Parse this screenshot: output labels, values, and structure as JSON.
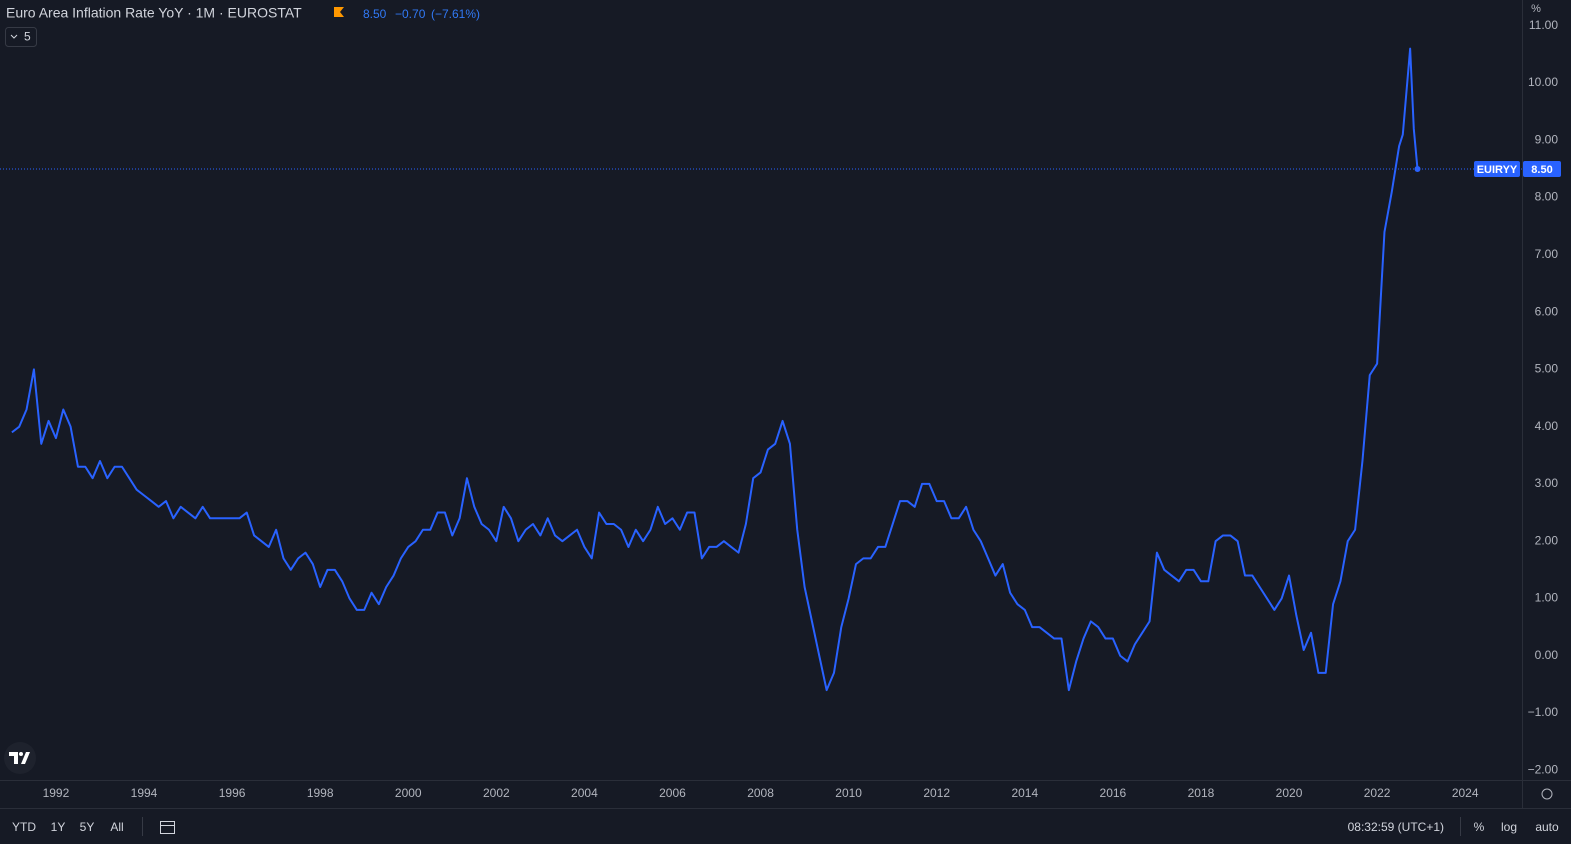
{
  "header": {
    "title": "Euro Area Inflation Rate YoY · 1M · EUROSTAT",
    "last": "8.50",
    "change": "−0.70",
    "change_pct": "(−7.61%)",
    "indicator_count": "5",
    "axis_unit": "%"
  },
  "toolbar": {
    "ranges": [
      "YTD",
      "1Y",
      "5Y",
      "All"
    ],
    "clock": "08:32:59 (UTC+1)",
    "options": [
      "%",
      "log",
      "auto"
    ]
  },
  "chart_data": {
    "type": "line",
    "x": [
      1991,
      1991.167,
      1991.333,
      1991.5,
      1991.667,
      1991.833,
      1992,
      1992.167,
      1992.333,
      1992.5,
      1992.667,
      1992.833,
      1993,
      1993.167,
      1993.333,
      1993.5,
      1993.667,
      1993.833,
      1994,
      1994.167,
      1994.333,
      1994.5,
      1994.667,
      1994.833,
      1995,
      1995.167,
      1995.333,
      1995.5,
      1995.667,
      1995.833,
      1996,
      1996.167,
      1996.333,
      1996.5,
      1996.667,
      1996.833,
      1997,
      1997.167,
      1997.333,
      1997.5,
      1997.667,
      1997.833,
      1998,
      1998.167,
      1998.333,
      1998.5,
      1998.667,
      1998.833,
      1999,
      1999.167,
      1999.333,
      1999.5,
      1999.667,
      1999.833,
      2000,
      2000.167,
      2000.333,
      2000.5,
      2000.667,
      2000.833,
      2001,
      2001.167,
      2001.333,
      2001.5,
      2001.667,
      2001.833,
      2002,
      2002.167,
      2002.333,
      2002.5,
      2002.667,
      2002.833,
      2003,
      2003.167,
      2003.333,
      2003.5,
      2003.667,
      2003.833,
      2004,
      2004.167,
      2004.333,
      2004.5,
      2004.667,
      2004.833,
      2005,
      2005.167,
      2005.333,
      2005.5,
      2005.667,
      2005.833,
      2006,
      2006.167,
      2006.333,
      2006.5,
      2006.667,
      2006.833,
      2007,
      2007.167,
      2007.333,
      2007.5,
      2007.667,
      2007.833,
      2008,
      2008.167,
      2008.333,
      2008.5,
      2008.667,
      2008.833,
      2009,
      2009.167,
      2009.333,
      2009.5,
      2009.667,
      2009.833,
      2010,
      2010.167,
      2010.333,
      2010.5,
      2010.667,
      2010.833,
      2011,
      2011.167,
      2011.333,
      2011.5,
      2011.667,
      2011.833,
      2012,
      2012.167,
      2012.333,
      2012.5,
      2012.667,
      2012.833,
      2013,
      2013.167,
      2013.333,
      2013.5,
      2013.667,
      2013.833,
      2014,
      2014.167,
      2014.333,
      2014.5,
      2014.667,
      2014.833,
      2015,
      2015.167,
      2015.333,
      2015.5,
      2015.667,
      2015.833,
      2016,
      2016.167,
      2016.333,
      2016.5,
      2016.667,
      2016.833,
      2017,
      2017.167,
      2017.333,
      2017.5,
      2017.667,
      2017.833,
      2018,
      2018.167,
      2018.333,
      2018.5,
      2018.667,
      2018.833,
      2019,
      2019.167,
      2019.333,
      2019.5,
      2019.667,
      2019.833,
      2020,
      2020.167,
      2020.333,
      2020.5,
      2020.667,
      2020.833,
      2021,
      2021.167,
      2021.333,
      2021.5,
      2021.667,
      2021.833,
      2022,
      2022.167,
      2022.333,
      2022.5,
      2022.583,
      2022.75,
      2022.833,
      2022.917
    ],
    "series": [
      {
        "name": "EUIRYY",
        "color": "#2962ff",
        "values": [
          3.9,
          4.0,
          4.3,
          5.0,
          3.7,
          4.1,
          3.8,
          4.3,
          4.0,
          3.3,
          3.3,
          3.1,
          3.4,
          3.1,
          3.3,
          3.3,
          3.1,
          2.9,
          2.8,
          2.7,
          2.6,
          2.7,
          2.4,
          2.6,
          2.5,
          2.4,
          2.6,
          2.4,
          2.4,
          2.4,
          2.4,
          2.4,
          2.5,
          2.1,
          2.0,
          1.9,
          2.2,
          1.7,
          1.5,
          1.7,
          1.8,
          1.6,
          1.2,
          1.5,
          1.5,
          1.3,
          1.0,
          0.8,
          0.8,
          1.1,
          0.9,
          1.2,
          1.4,
          1.7,
          1.9,
          2.0,
          2.2,
          2.2,
          2.5,
          2.5,
          2.1,
          2.4,
          3.1,
          2.6,
          2.3,
          2.2,
          2.0,
          2.6,
          2.4,
          2.0,
          2.2,
          2.3,
          2.1,
          2.4,
          2.1,
          2.0,
          2.1,
          2.2,
          1.9,
          1.7,
          2.5,
          2.3,
          2.3,
          2.2,
          1.9,
          2.2,
          2.0,
          2.2,
          2.6,
          2.3,
          2.4,
          2.2,
          2.5,
          2.5,
          1.7,
          1.9,
          1.9,
          2.0,
          1.9,
          1.8,
          2.3,
          3.1,
          3.2,
          3.6,
          3.7,
          4.1,
          3.7,
          2.2,
          1.2,
          0.6,
          0.0,
          -0.6,
          -0.3,
          0.5,
          1.0,
          1.6,
          1.7,
          1.7,
          1.9,
          1.9,
          2.3,
          2.7,
          2.7,
          2.6,
          3.0,
          3.0,
          2.7,
          2.7,
          2.4,
          2.4,
          2.6,
          2.2,
          2.0,
          1.7,
          1.4,
          1.6,
          1.1,
          0.9,
          0.8,
          0.5,
          0.5,
          0.4,
          0.3,
          0.3,
          -0.6,
          -0.1,
          0.3,
          0.6,
          0.5,
          0.3,
          0.3,
          0.0,
          -0.1,
          0.2,
          0.4,
          0.6,
          1.8,
          1.5,
          1.4,
          1.3,
          1.5,
          1.5,
          1.3,
          1.3,
          2.0,
          2.1,
          2.1,
          2.0,
          1.4,
          1.4,
          1.2,
          1.0,
          0.8,
          1.0,
          1.4,
          0.7,
          0.1,
          0.4,
          -0.3,
          -0.3,
          0.9,
          1.3,
          2.0,
          2.2,
          3.4,
          4.9,
          5.1,
          7.4,
          8.1,
          8.9,
          9.1,
          10.6,
          9.2,
          8.5
        ]
      }
    ],
    "xlim": [
      1990.73,
      2025.29
    ],
    "xticks": [
      1992,
      1994,
      1996,
      1998,
      2000,
      2002,
      2004,
      2006,
      2008,
      2010,
      2012,
      2014,
      2016,
      2018,
      2020,
      2022,
      2024
    ],
    "ylim": [
      -2.17,
      11.45
    ],
    "yticks": [
      {
        "value": -2,
        "label": "−2.00"
      },
      {
        "value": -1,
        "label": "−1.00"
      },
      {
        "value": 0,
        "label": "0.00"
      },
      {
        "value": 1,
        "label": "1.00"
      },
      {
        "value": 2,
        "label": "2.00"
      },
      {
        "value": 3,
        "label": "3.00"
      },
      {
        "value": 4,
        "label": "4.00"
      },
      {
        "value": 5,
        "label": "5.00"
      },
      {
        "value": 6,
        "label": "6.00"
      },
      {
        "value": 7,
        "label": "7.00"
      },
      {
        "value": 8,
        "label": "8.00"
      },
      {
        "value": 9,
        "label": "9.00"
      },
      {
        "value": 10,
        "label": "10.00"
      },
      {
        "value": 11,
        "label": "11.00"
      }
    ],
    "grid": false
  }
}
